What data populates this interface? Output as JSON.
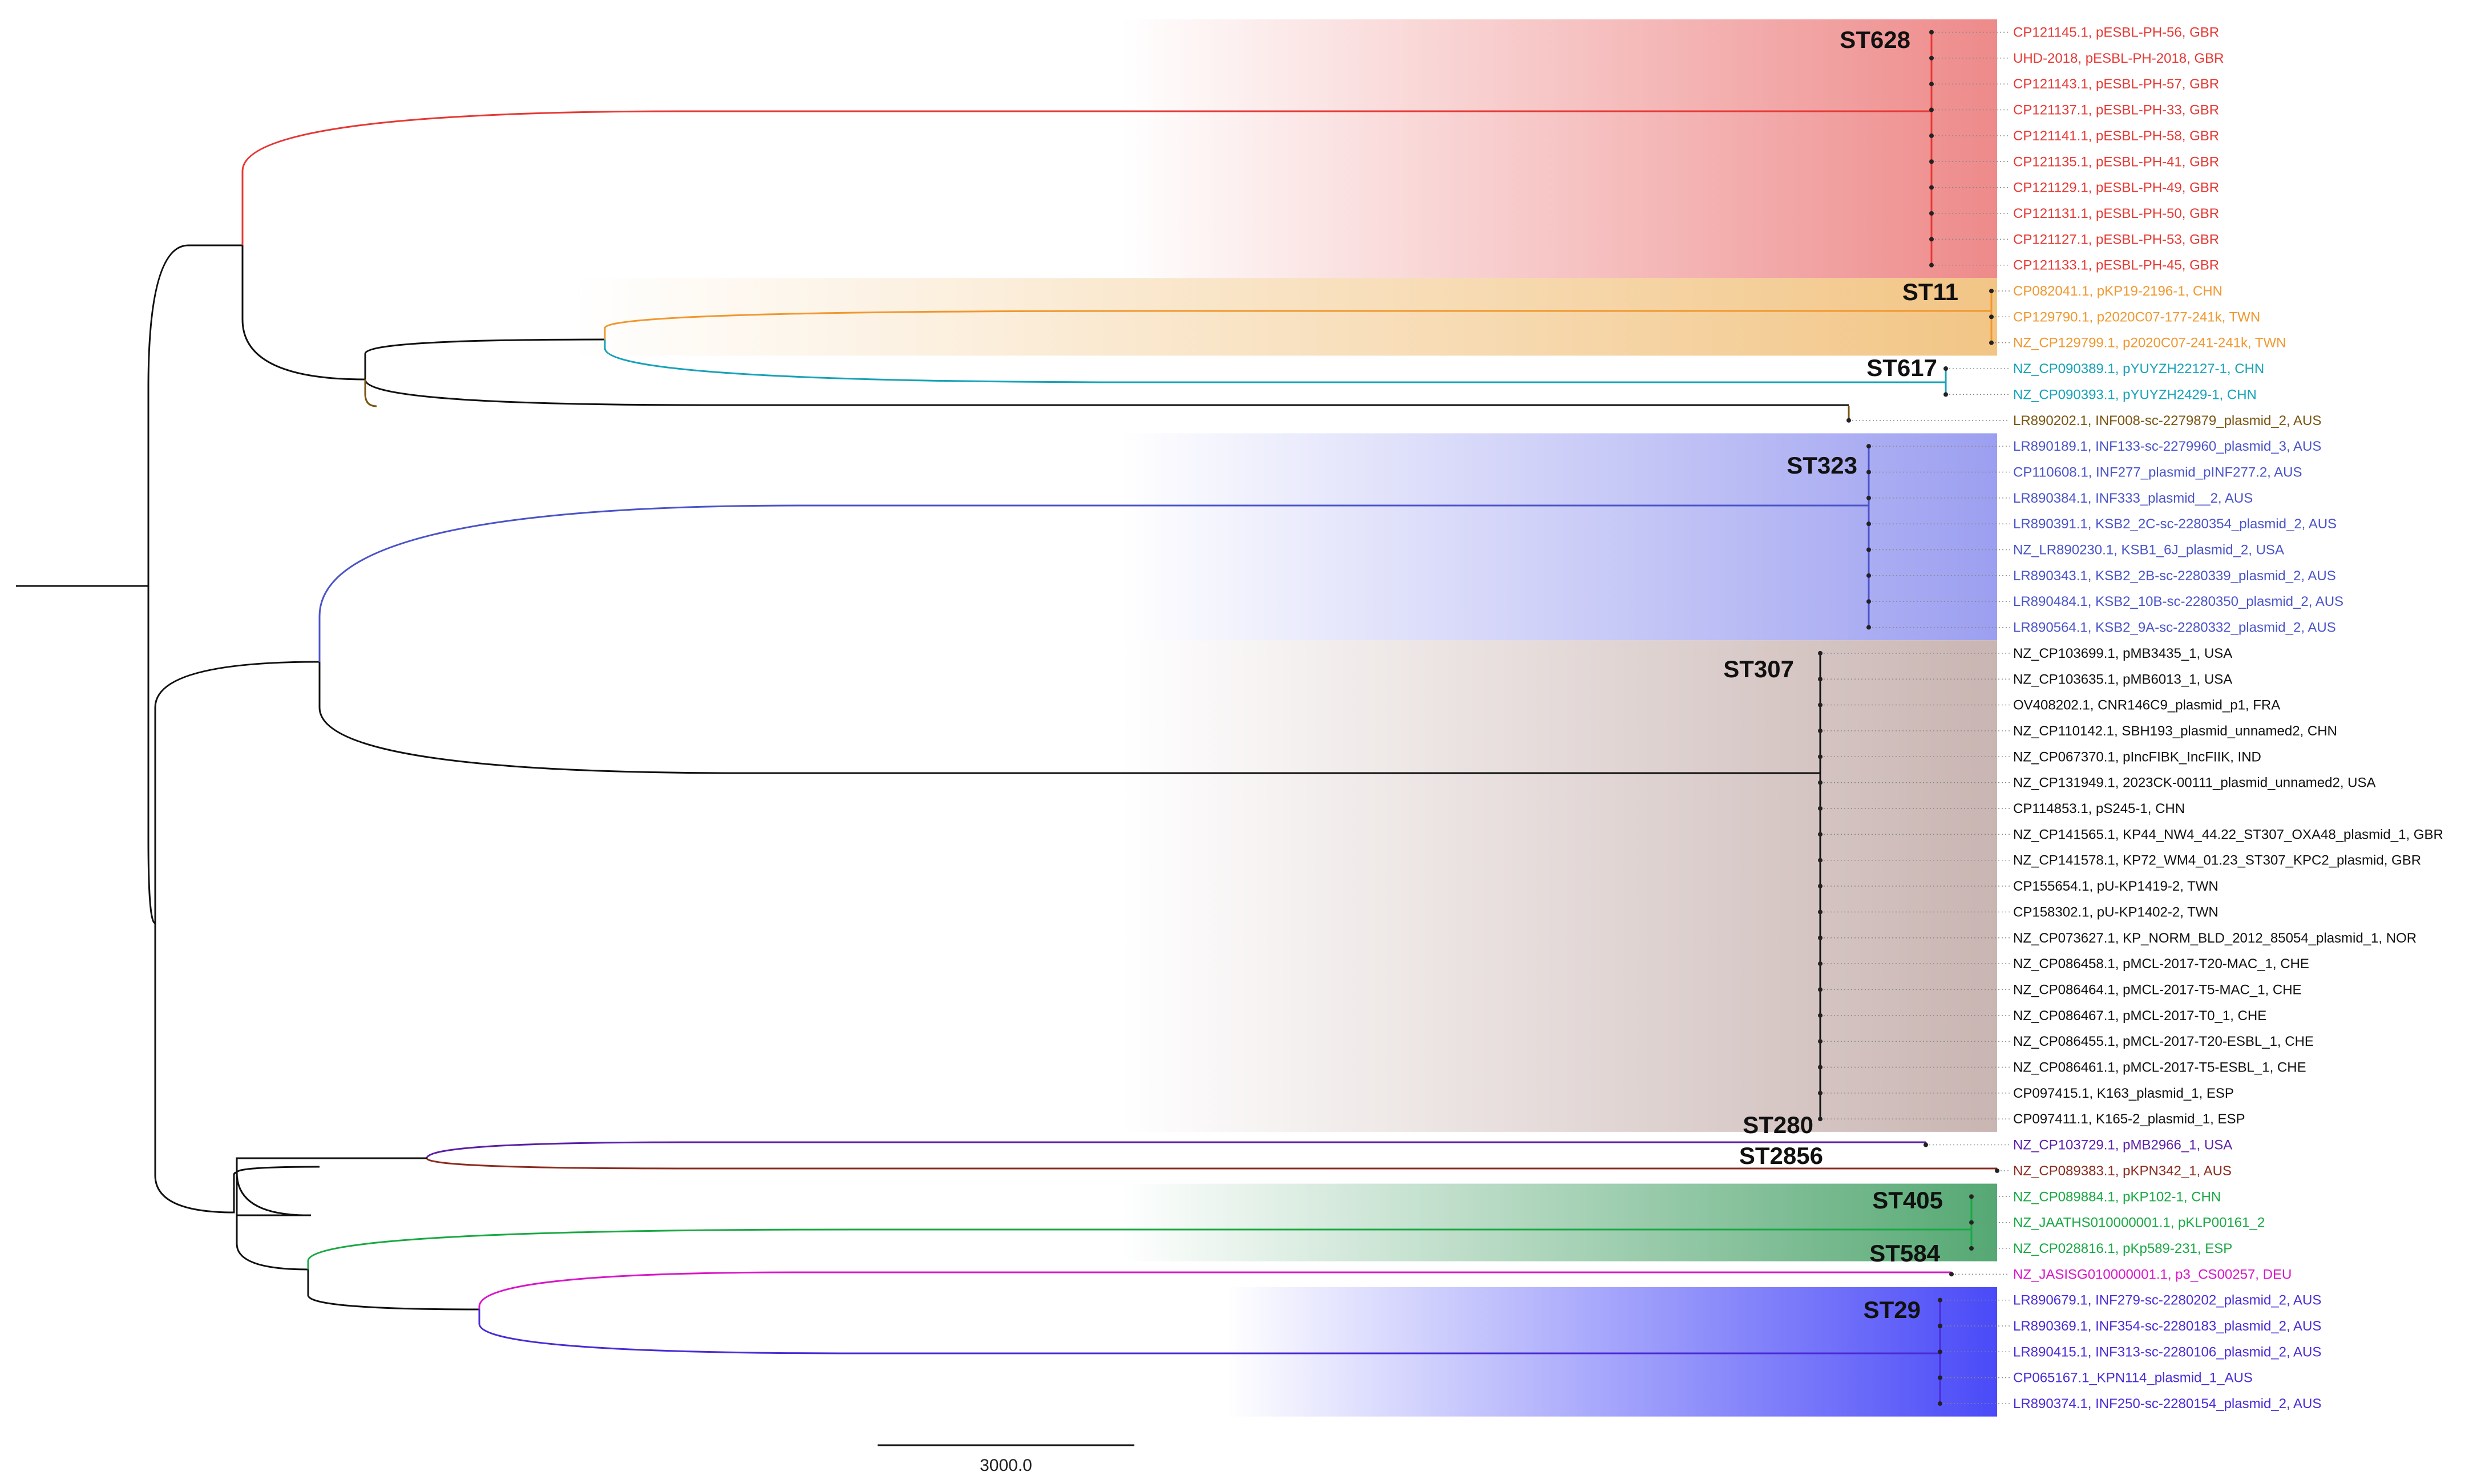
{
  "clades": [
    {
      "id": "ST628",
      "label": "ST628",
      "color": "#e53935",
      "band": "#ee8a8a"
    },
    {
      "id": "ST11",
      "label": "ST11",
      "color": "#f0982f",
      "band": "#f2c585"
    },
    {
      "id": "ST617",
      "label": "ST617",
      "color": "#17a2b8",
      "band": null
    },
    {
      "id": "INF008",
      "label": "",
      "color": "#7a5410",
      "band": null
    },
    {
      "id": "ST323",
      "label": "ST323",
      "color": "#4a54c9",
      "band": "#9c9ff0"
    },
    {
      "id": "ST307",
      "label": "ST307",
      "color": "#111111",
      "band": "#c9b5b2"
    },
    {
      "id": "ST280",
      "label": "ST280",
      "color": "#5a1fa8",
      "band": null
    },
    {
      "id": "ST2856",
      "label": "ST2856",
      "color": "#8b2c1f",
      "band": null
    },
    {
      "id": "ST405",
      "label": "ST405",
      "color": "#1aa844",
      "band": "#55a873"
    },
    {
      "id": "ST584",
      "label": "ST584",
      "color": "#d816c9",
      "band": null
    },
    {
      "id": "ST29",
      "label": "ST29",
      "color": "#4a2bd6",
      "band": "#4a4af8"
    }
  ],
  "leaves": [
    {
      "clade": "ST628",
      "label": "CP121145.1, pESBL-PH-56, GBR"
    },
    {
      "clade": "ST628",
      "label": "UHD-2018, pESBL-PH-2018, GBR"
    },
    {
      "clade": "ST628",
      "label": "CP121143.1, pESBL-PH-57, GBR"
    },
    {
      "clade": "ST628",
      "label": "CP121137.1, pESBL-PH-33, GBR"
    },
    {
      "clade": "ST628",
      "label": "CP121141.1, pESBL-PH-58, GBR"
    },
    {
      "clade": "ST628",
      "label": "CP121135.1, pESBL-PH-41, GBR"
    },
    {
      "clade": "ST628",
      "label": "CP121129.1, pESBL-PH-49, GBR"
    },
    {
      "clade": "ST628",
      "label": "CP121131.1, pESBL-PH-50, GBR"
    },
    {
      "clade": "ST628",
      "label": "CP121127.1, pESBL-PH-53, GBR"
    },
    {
      "clade": "ST628",
      "label": "CP121133.1, pESBL-PH-45, GBR"
    },
    {
      "clade": "ST11",
      "label": "CP082041.1, pKP19-2196-1, CHN"
    },
    {
      "clade": "ST11",
      "label": "CP129790.1, p2020C07-177-241k, TWN"
    },
    {
      "clade": "ST11",
      "label": "NZ_CP129799.1, p2020C07-241-241k, TWN"
    },
    {
      "clade": "ST617",
      "label": "NZ_CP090389.1, pYUYZH22127-1, CHN"
    },
    {
      "clade": "ST617",
      "label": "NZ_CP090393.1, pYUYZH2429-1, CHN"
    },
    {
      "clade": "INF008",
      "label": "LR890202.1, INF008-sc-2279879_plasmid_2, AUS"
    },
    {
      "clade": "ST323",
      "label": "LR890189.1, INF133-sc-2279960_plasmid_3, AUS"
    },
    {
      "clade": "ST323",
      "label": "CP110608.1, INF277_plasmid_pINF277.2, AUS"
    },
    {
      "clade": "ST323",
      "label": "LR890384.1, INF333_plasmid__2, AUS"
    },
    {
      "clade": "ST323",
      "label": "LR890391.1, KSB2_2C-sc-2280354_plasmid_2, AUS"
    },
    {
      "clade": "ST323",
      "label": "NZ_LR890230.1, KSB1_6J_plasmid_2, USA"
    },
    {
      "clade": "ST323",
      "label": "LR890343.1, KSB2_2B-sc-2280339_plasmid_2, AUS"
    },
    {
      "clade": "ST323",
      "label": "LR890484.1, KSB2_10B-sc-2280350_plasmid_2, AUS"
    },
    {
      "clade": "ST323",
      "label": "LR890564.1, KSB2_9A-sc-2280332_plasmid_2, AUS"
    },
    {
      "clade": "ST307",
      "label": "NZ_CP103699.1, pMB3435_1, USA"
    },
    {
      "clade": "ST307",
      "label": "NZ_CP103635.1, pMB6013_1, USA"
    },
    {
      "clade": "ST307",
      "label": "OV408202.1, CNR146C9_plasmid_p1, FRA"
    },
    {
      "clade": "ST307",
      "label": "NZ_CP110142.1, SBH193_plasmid_unnamed2, CHN"
    },
    {
      "clade": "ST307",
      "label": "NZ_CP067370.1, pIncFIBK_IncFIIK, IND"
    },
    {
      "clade": "ST307",
      "label": "NZ_CP131949.1, 2023CK-00111_plasmid_unnamed2, USA"
    },
    {
      "clade": "ST307",
      "label": "CP114853.1, pS245-1, CHN"
    },
    {
      "clade": "ST307",
      "label": "NZ_CP141565.1, KP44_NW4_44.22_ST307_OXA48_plasmid_1, GBR"
    },
    {
      "clade": "ST307",
      "label": "NZ_CP141578.1, KP72_WM4_01.23_ST307_KPC2_plasmid, GBR"
    },
    {
      "clade": "ST307",
      "label": "CP155654.1, pU-KP1419-2, TWN"
    },
    {
      "clade": "ST307",
      "label": "CP158302.1, pU-KP1402-2, TWN"
    },
    {
      "clade": "ST307",
      "label": "NZ_CP073627.1, KP_NORM_BLD_2012_85054_plasmid_1, NOR"
    },
    {
      "clade": "ST307",
      "label": "NZ_CP086458.1, pMCL-2017-T20-MAC_1, CHE"
    },
    {
      "clade": "ST307",
      "label": "NZ_CP086464.1, pMCL-2017-T5-MAC_1, CHE"
    },
    {
      "clade": "ST307",
      "label": "NZ_CP086467.1, pMCL-2017-T0_1, CHE"
    },
    {
      "clade": "ST307",
      "label": "NZ_CP086455.1, pMCL-2017-T20-ESBL_1, CHE"
    },
    {
      "clade": "ST307",
      "label": "NZ_CP086461.1, pMCL-2017-T5-ESBL_1, CHE"
    },
    {
      "clade": "ST307",
      "label": "CP097415.1, K163_plasmid_1, ESP"
    },
    {
      "clade": "ST307",
      "label": "CP097411.1, K165-2_plasmid_1, ESP"
    },
    {
      "clade": "ST280",
      "label": "NZ_CP103729.1, pMB2966_1, USA"
    },
    {
      "clade": "ST2856",
      "label": "NZ_CP089383.1, pKPN342_1, AUS"
    },
    {
      "clade": "ST405",
      "label": "NZ_CP089884.1, pKP102-1, CHN"
    },
    {
      "clade": "ST405",
      "label": "NZ_JAATHS010000001.1, pKLP00161_2"
    },
    {
      "clade": "ST405",
      "label": "NZ_CP028816.1, pKp589-231, ESP"
    },
    {
      "clade": "ST584",
      "label": "NZ_JASISG010000001.1, p3_CS00257, DEU"
    },
    {
      "clade": "ST29",
      "label": "LR890679.1, INF279-sc-2280202_plasmid_2, AUS"
    },
    {
      "clade": "ST29",
      "label": "LR890369.1, INF354-sc-2280183_plasmid_2, AUS"
    },
    {
      "clade": "ST29",
      "label": "LR890415.1, INF313-sc-2280106_plasmid_2, AUS"
    },
    {
      "clade": "ST29",
      "label": "CP065167.1_KPN114_plasmid_1_AUS"
    },
    {
      "clade": "ST29",
      "label": "LR890374.1, INF250-sc-2280154_plasmid_2, AUS"
    }
  ],
  "scale_bar": {
    "label": "3000.0"
  }
}
